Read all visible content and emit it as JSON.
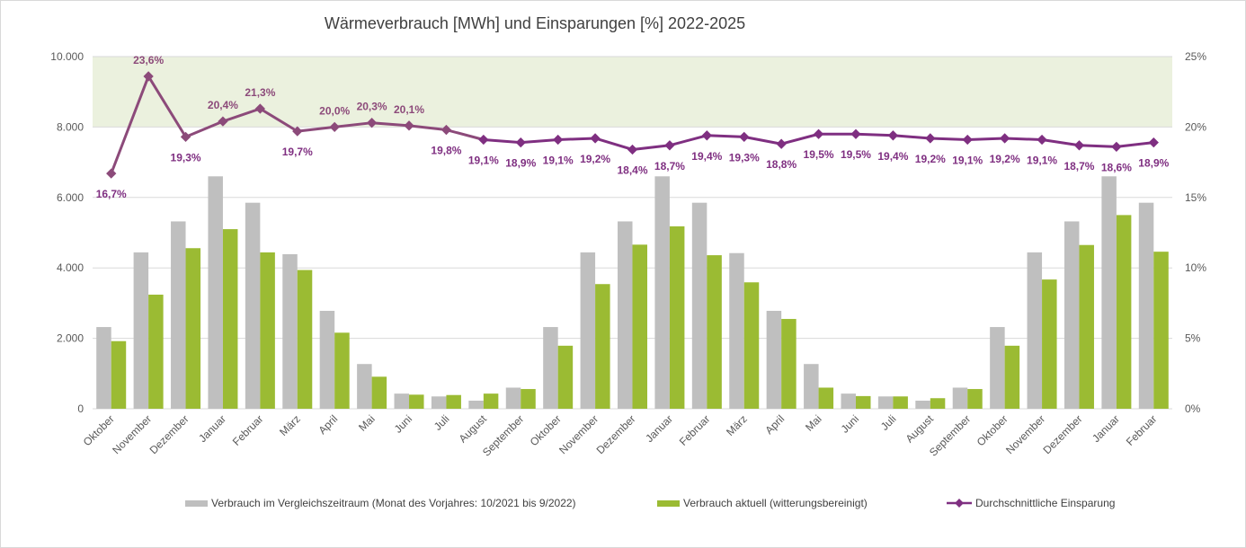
{
  "chart_data": {
    "type": "bar",
    "title": "Wärmeverbrauch [MWh] und Einsparungen [%] 2022-2025",
    "categories": [
      "Oktober",
      "November",
      "Dezember",
      "Januar",
      "Februar",
      "März",
      "April",
      "Mai",
      "Juni",
      "Juli",
      "August",
      "September",
      "Oktober",
      "November",
      "Dezember",
      "Januar",
      "Februar",
      "März",
      "April",
      "Mai",
      "Juni",
      "Juli",
      "August",
      "September",
      "Oktober",
      "November",
      "Dezember",
      "Januar",
      "Februar"
    ],
    "y_left": {
      "min": 0,
      "max": 10000,
      "ticks": [
        "0",
        "2.000",
        "4.000",
        "6.000",
        "8.000",
        "10.000"
      ],
      "tick_values": [
        0,
        2000,
        4000,
        6000,
        8000,
        10000
      ]
    },
    "y_right": {
      "min": 0,
      "max": 25,
      "ticks": [
        "0%",
        "5%",
        "10%",
        "15%",
        "20%",
        "25%"
      ],
      "tick_values": [
        0,
        5,
        10,
        15,
        20,
        25
      ]
    },
    "band": {
      "from": 20,
      "to": 25,
      "axis": "right",
      "color": "#ebf1de"
    },
    "grid": true,
    "legend_position": "bottom",
    "series": [
      {
        "name": "Verbrauch im Vergleichszeitraum (Monat des Vorjahres: 10/2021 bis 9/2022)",
        "kind": "bar",
        "axis": "left",
        "color": "#bfbfbf",
        "values": [
          2320,
          4440,
          5320,
          6600,
          5850,
          4390,
          2780,
          1270,
          430,
          350,
          230,
          600,
          2320,
          4440,
          5320,
          6600,
          5850,
          4420,
          2780,
          1270,
          430,
          350,
          230,
          600,
          2320,
          4440,
          5320,
          6600,
          5850
        ]
      },
      {
        "name": "Verbrauch aktuell (witterungsbereinigt)",
        "kind": "bar",
        "axis": "left",
        "color": "#9bbb33",
        "values": [
          1920,
          3240,
          4560,
          5100,
          4440,
          3940,
          2160,
          910,
          400,
          390,
          430,
          560,
          1790,
          3540,
          4660,
          5180,
          4360,
          3590,
          2550,
          600,
          360,
          350,
          300,
          560,
          1790,
          3670,
          4650,
          5500,
          4460
        ]
      },
      {
        "name": "Durchschnittliche Einsparung",
        "kind": "line",
        "axis": "right",
        "color": "#7f2f81",
        "values": [
          16.7,
          23.6,
          19.3,
          20.4,
          21.3,
          19.7,
          20.0,
          20.3,
          20.1,
          19.8,
          19.1,
          18.9,
          19.1,
          19.2,
          18.4,
          18.7,
          19.4,
          19.3,
          18.8,
          19.5,
          19.5,
          19.4,
          19.2,
          19.1,
          19.2,
          19.1,
          18.7,
          18.6,
          18.9
        ],
        "labels": [
          "16,7%",
          "23,6%",
          "19,3%",
          "20,4%",
          "21,3%",
          "19,7%",
          "20,0%",
          "20,3%",
          "20,1%",
          "19,8%",
          "19,1%",
          "18,9%",
          "19,1%",
          "19,2%",
          "18,4%",
          "18,7%",
          "19,4%",
          "19,3%",
          "18,8%",
          "19,5%",
          "19,5%",
          "19,4%",
          "19,2%",
          "19,1%",
          "19,2%",
          "19,1%",
          "18,7%",
          "18,6%",
          "18,9%"
        ]
      }
    ],
    "colors": {
      "line_in_band": "#8c4a7a",
      "label_in_band": "#8c4a7a",
      "label_below": "#7f2f81",
      "axis_text": "#595959",
      "gridline": "#d9d9d9"
    }
  },
  "legend": {
    "baseline": "Verbrauch im Vergleichszeitraum (Monat des Vorjahres: 10/2021 bis 9/2022)",
    "current": "Verbrauch aktuell (witterungsbereinigt)",
    "savings": "Durchschnittliche Einsparung"
  }
}
